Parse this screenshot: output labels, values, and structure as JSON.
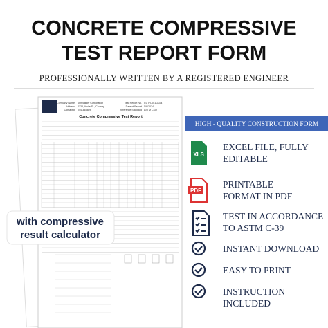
{
  "header": {
    "title_lines": [
      "CONCRETE COMPRESSIVE",
      "TEST REPORT FORM"
    ],
    "subtitle": "PROFESSIONALLY WRITTEN BY A REGISTERED ENGINEER"
  },
  "banner": "HIGH - QUALITY CONSTRUCTION FORM",
  "features": [
    {
      "icon": "XLS",
      "lines": [
        "EXCEL FILE, FULLY",
        "EDITABLE"
      ]
    },
    {
      "icon": "PDF",
      "lines": [
        "PRINTABLE",
        "FORMAT IN PDF"
      ]
    },
    {
      "lines": [
        "TEST IN ACCORDANCE",
        "TO ASTM C-39"
      ]
    },
    {
      "lines": [
        "INSTANT DOWNLOAD"
      ]
    },
    {
      "lines": [
        "EASY TO PRINT"
      ]
    },
    {
      "lines": [
        "INSTRUCTION",
        "INCLUDED"
      ]
    }
  ],
  "badge": {
    "lines": [
      "with compressive",
      "result calculator"
    ]
  },
  "form": {
    "title": "Concrete Compressive Test Report",
    "fields": [
      {
        "label": "Company Name",
        "value": "VeriBuilder Corporation"
      },
      {
        "label": "Address",
        "value": "4133, Arcile St., Country"
      },
      {
        "label": "Contact #",
        "value": "044-345889"
      }
    ],
    "right_fields": [
      {
        "label": "Test Report No.",
        "value": "CCTR-001-2024"
      },
      {
        "label": "Date of Report",
        "value": "5/9/2024"
      },
      {
        "label": "Reference Standard",
        "value": "ASTM C-39"
      }
    ]
  }
}
